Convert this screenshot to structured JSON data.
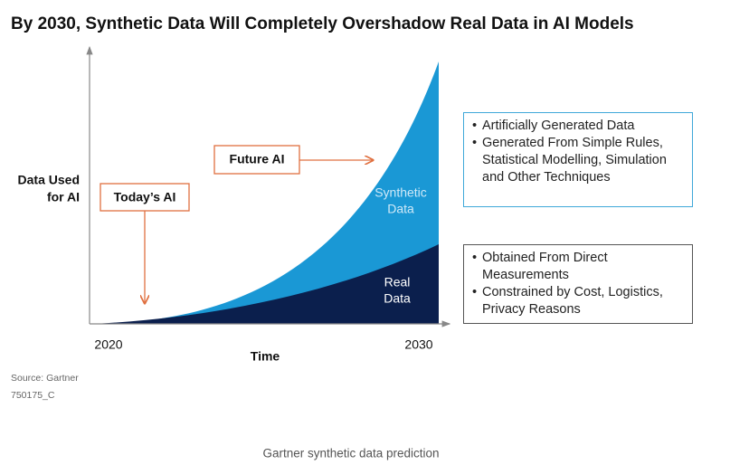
{
  "title": "By 2030,  Synthetic Data Will Completely Overshadow Real Data in AI Models",
  "y_label": [
    "Data Used",
    "for AI"
  ],
  "x_label": "Time",
  "x_start": "2020",
  "x_end": "2030",
  "callouts": [
    "Today’s AI",
    "Future AI"
  ],
  "areas": [
    {
      "label": [
        "Synthetic",
        "Data"
      ]
    },
    {
      "label": [
        "Real",
        "Data"
      ]
    }
  ],
  "boxes": [
    {
      "items": [
        "Artificially Generated Data",
        "Generated From Simple Rules, Statistical Modelling, Simulation and Other Techniques"
      ]
    },
    {
      "items": [
        "Obtained From Direct Measurements",
        "Constrained by Cost, Logistics, Privacy Reasons"
      ]
    }
  ],
  "source": "Source: Gartner",
  "code": "750175_C",
  "caption": "Gartner synthetic data prediction"
}
